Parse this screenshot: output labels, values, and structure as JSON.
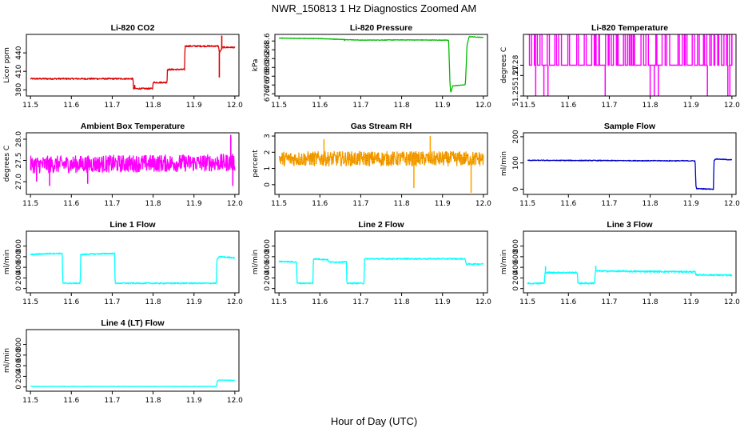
{
  "figure": {
    "title": "NWR_150813  1 Hz Diagnostics Zoomed AM",
    "xlabel": "Hour of Day (UTC)"
  },
  "chart_data": [
    {
      "id": "co2",
      "type": "line",
      "title": "Li-820 CO2",
      "ylabel": "Licor ppm",
      "color": "#dd0000",
      "xlim": [
        11.5,
        12.0
      ],
      "xticks": [
        11.5,
        11.6,
        11.7,
        11.8,
        11.9,
        12.0
      ],
      "ylim": [
        370,
        470
      ],
      "yticks": [
        380,
        410,
        440
      ],
      "noise": 1.2,
      "spikes": [
        [
          11.962,
          400
        ],
        [
          11.968,
          468
        ],
        [
          11.755,
          388
        ]
      ],
      "series": [
        {
          "name": "CO2",
          "points": [
            [
              11.5,
              398
            ],
            [
              11.751,
              398
            ],
            [
              11.752,
              382
            ],
            [
              11.799,
              382
            ],
            [
              11.8,
              392
            ],
            [
              11.834,
              392
            ],
            [
              11.835,
              413
            ],
            [
              11.877,
              413
            ],
            [
              11.878,
              451
            ],
            [
              11.96,
              451
            ],
            [
              11.962,
              440
            ],
            [
              11.97,
              449
            ],
            [
              12.0,
              449
            ]
          ]
        }
      ]
    },
    {
      "id": "pressure",
      "type": "line",
      "title": "Li-820 Pressure",
      "ylabel": "kPa",
      "color": "#00bb00",
      "xlim": [
        11.5,
        12.0
      ],
      "xticks": [
        11.5,
        11.6,
        11.7,
        11.8,
        11.9,
        12.0
      ],
      "ylim": [
        67.35,
        68.75
      ],
      "yticks": [
        67.4,
        67.6,
        67.8,
        68.0,
        68.2,
        68.4,
        68.6
      ],
      "noise": 0.006,
      "spikes": [
        [
          11.66,
          68.6
        ],
        [
          11.7,
          68.61
        ]
      ],
      "series": [
        {
          "name": "Pressure",
          "points": [
            [
              11.5,
              68.665
            ],
            [
              11.6,
              68.655
            ],
            [
              11.7,
              68.62
            ],
            [
              11.8,
              68.625
            ],
            [
              11.9,
              68.62
            ],
            [
              11.915,
              68.62
            ],
            [
              11.918,
              67.7
            ],
            [
              11.92,
              67.42
            ],
            [
              11.925,
              67.58
            ],
            [
              11.95,
              67.6
            ],
            [
              11.956,
              67.61
            ],
            [
              11.96,
              68.5
            ],
            [
              11.965,
              68.7
            ],
            [
              12.0,
              68.68
            ]
          ]
        }
      ]
    },
    {
      "id": "temp820",
      "type": "line",
      "title": "Li-820 Temperature",
      "ylabel": "degrees C",
      "color": "#ff00ff",
      "xlim": [
        11.5,
        12.0
      ],
      "xticks": [
        11.5,
        11.6,
        11.7,
        11.8,
        11.9,
        12.0
      ],
      "ylim": [
        51.25,
        51.31
      ],
      "yticks": [
        51.25,
        51.27,
        51.28
      ],
      "levels": [
        51.28,
        51.31
      ],
      "drops": [
        11.52,
        11.54,
        11.55,
        11.69,
        11.8,
        11.81,
        11.82,
        11.94,
        11.99,
        11.995
      ],
      "series": [
        {
          "name": "Temperature",
          "points": []
        }
      ]
    },
    {
      "id": "ambient",
      "type": "line",
      "title": "Ambient Box Temperature",
      "ylabel": "degrees C",
      "color": "#ff00ff",
      "xlim": [
        11.5,
        12.0
      ],
      "xticks": [
        11.5,
        11.6,
        11.7,
        11.8,
        11.9,
        12.0
      ],
      "ylim": [
        26.7,
        28.15
      ],
      "yticks": [
        27.0,
        27.5,
        28.0
      ],
      "noise": 0.2,
      "spikes": [
        [
          11.547,
          26.9
        ],
        [
          11.515,
          27.0
        ],
        [
          11.99,
          28.1
        ],
        [
          11.995,
          26.9
        ],
        [
          11.64,
          26.95
        ]
      ],
      "series": [
        {
          "name": "Ambient",
          "points": [
            [
              11.5,
              27.4
            ],
            [
              12.0,
              27.45
            ]
          ]
        }
      ]
    },
    {
      "id": "rh",
      "type": "line",
      "title": "Gas Stream RH",
      "ylabel": "percent",
      "color": "#ffa500",
      "xlim": [
        11.5,
        12.0
      ],
      "xticks": [
        11.5,
        11.6,
        11.7,
        11.8,
        11.9,
        12.0
      ],
      "ylim": [
        -0.6,
        3.2
      ],
      "yticks": [
        0,
        1,
        2,
        3
      ],
      "noise": 0.45,
      "spikes": [
        [
          11.97,
          -0.5
        ],
        [
          11.87,
          3.0
        ],
        [
          11.61,
          2.8
        ],
        [
          11.83,
          -0.2
        ]
      ],
      "series": [
        {
          "name": "RH",
          "points": [
            [
              11.5,
              1.6
            ],
            [
              12.0,
              1.6
            ]
          ]
        }
      ]
    },
    {
      "id": "sample",
      "type": "line",
      "title": "Sample Flow",
      "ylabel": "ml/min",
      "color": "#0000cc",
      "xlim": [
        11.5,
        12.0
      ],
      "xticks": [
        11.5,
        11.6,
        11.7,
        11.8,
        11.9,
        12.0
      ],
      "ylim": [
        -20,
        215
      ],
      "yticks": [
        0,
        100,
        200
      ],
      "noise": 1.5,
      "series": [
        {
          "name": "Sample Flow",
          "points": [
            [
              11.5,
              110
            ],
            [
              11.7,
              109
            ],
            [
              11.91,
              108
            ],
            [
              11.912,
              10
            ],
            [
              11.914,
              2
            ],
            [
              11.955,
              0
            ],
            [
              11.956,
              110
            ],
            [
              11.96,
              115
            ],
            [
              12.0,
              112
            ]
          ]
        }
      ]
    },
    {
      "id": "line1",
      "type": "line",
      "title": "Line 1 Flow",
      "ylabel": "ml/min",
      "color": "#00ffff",
      "xlim": [
        11.5,
        12.0
      ],
      "xticks": [
        11.5,
        11.6,
        11.7,
        11.8,
        11.9,
        12.0
      ],
      "ylim": [
        -80,
        1080
      ],
      "yticks": [
        0,
        200,
        400,
        600,
        800
      ],
      "noise": 12,
      "series": [
        {
          "name": "Line 1 Flow",
          "points": [
            [
              11.5,
              640
            ],
            [
              11.55,
              660
            ],
            [
              11.578,
              660
            ],
            [
              11.579,
              100
            ],
            [
              11.622,
              100
            ],
            [
              11.623,
              640
            ],
            [
              11.65,
              650
            ],
            [
              11.706,
              660
            ],
            [
              11.707,
              100
            ],
            [
              11.955,
              100
            ],
            [
              11.956,
              550
            ],
            [
              11.963,
              600
            ],
            [
              12.0,
              580
            ]
          ]
        }
      ]
    },
    {
      "id": "line2",
      "type": "line",
      "title": "Line 2 Flow",
      "ylabel": "ml/min",
      "color": "#00ffff",
      "xlim": [
        11.5,
        12.0
      ],
      "xticks": [
        11.5,
        11.6,
        11.7,
        11.8,
        11.9,
        12.0
      ],
      "ylim": [
        -80,
        1080
      ],
      "yticks": [
        0,
        200,
        400,
        600,
        800
      ],
      "noise": 12,
      "series": [
        {
          "name": "Line 2 Flow",
          "points": [
            [
              11.5,
              510
            ],
            [
              11.543,
              500
            ],
            [
              11.544,
              100
            ],
            [
              11.583,
              100
            ],
            [
              11.584,
              560
            ],
            [
              11.62,
              545
            ],
            [
              11.621,
              500
            ],
            [
              11.665,
              500
            ],
            [
              11.666,
              100
            ],
            [
              11.708,
              100
            ],
            [
              11.709,
              560
            ],
            [
              11.955,
              560
            ],
            [
              11.958,
              460
            ],
            [
              12.0,
              465
            ]
          ]
        }
      ]
    },
    {
      "id": "line3",
      "type": "line",
      "title": "Line 3 Flow",
      "ylabel": "ml/min",
      "color": "#00ffff",
      "xlim": [
        11.5,
        12.0
      ],
      "xticks": [
        11.5,
        11.6,
        11.7,
        11.8,
        11.9,
        12.0
      ],
      "ylim": [
        -80,
        1080
      ],
      "yticks": [
        0,
        200,
        400,
        600,
        800
      ],
      "noise": 15,
      "spikes": [
        [
          11.544,
          420
        ],
        [
          11.667,
          430
        ]
      ],
      "series": [
        {
          "name": "Line 3 Flow",
          "points": [
            [
              11.5,
              100
            ],
            [
              11.541,
              100
            ],
            [
              11.543,
              300
            ],
            [
              11.622,
              300
            ],
            [
              11.623,
              100
            ],
            [
              11.664,
              100
            ],
            [
              11.666,
              330
            ],
            [
              11.91,
              315
            ],
            [
              11.911,
              260
            ],
            [
              12.0,
              250
            ]
          ]
        }
      ]
    },
    {
      "id": "line4",
      "type": "line",
      "title": "Line 4 (LT) Flow",
      "ylabel": "ml/min",
      "color": "#00ffff",
      "xlim": [
        11.5,
        12.0
      ],
      "xticks": [
        11.5,
        11.6,
        11.7,
        11.8,
        11.9,
        12.0
      ],
      "ylim": [
        -80,
        1080
      ],
      "yticks": [
        0,
        200,
        400,
        600,
        800
      ],
      "noise": 3,
      "series": [
        {
          "name": "Line 4 Flow",
          "points": [
            [
              11.5,
              10
            ],
            [
              11.955,
              10
            ],
            [
              11.957,
              110
            ],
            [
              11.96,
              130
            ],
            [
              12.0,
              125
            ]
          ]
        }
      ]
    }
  ]
}
